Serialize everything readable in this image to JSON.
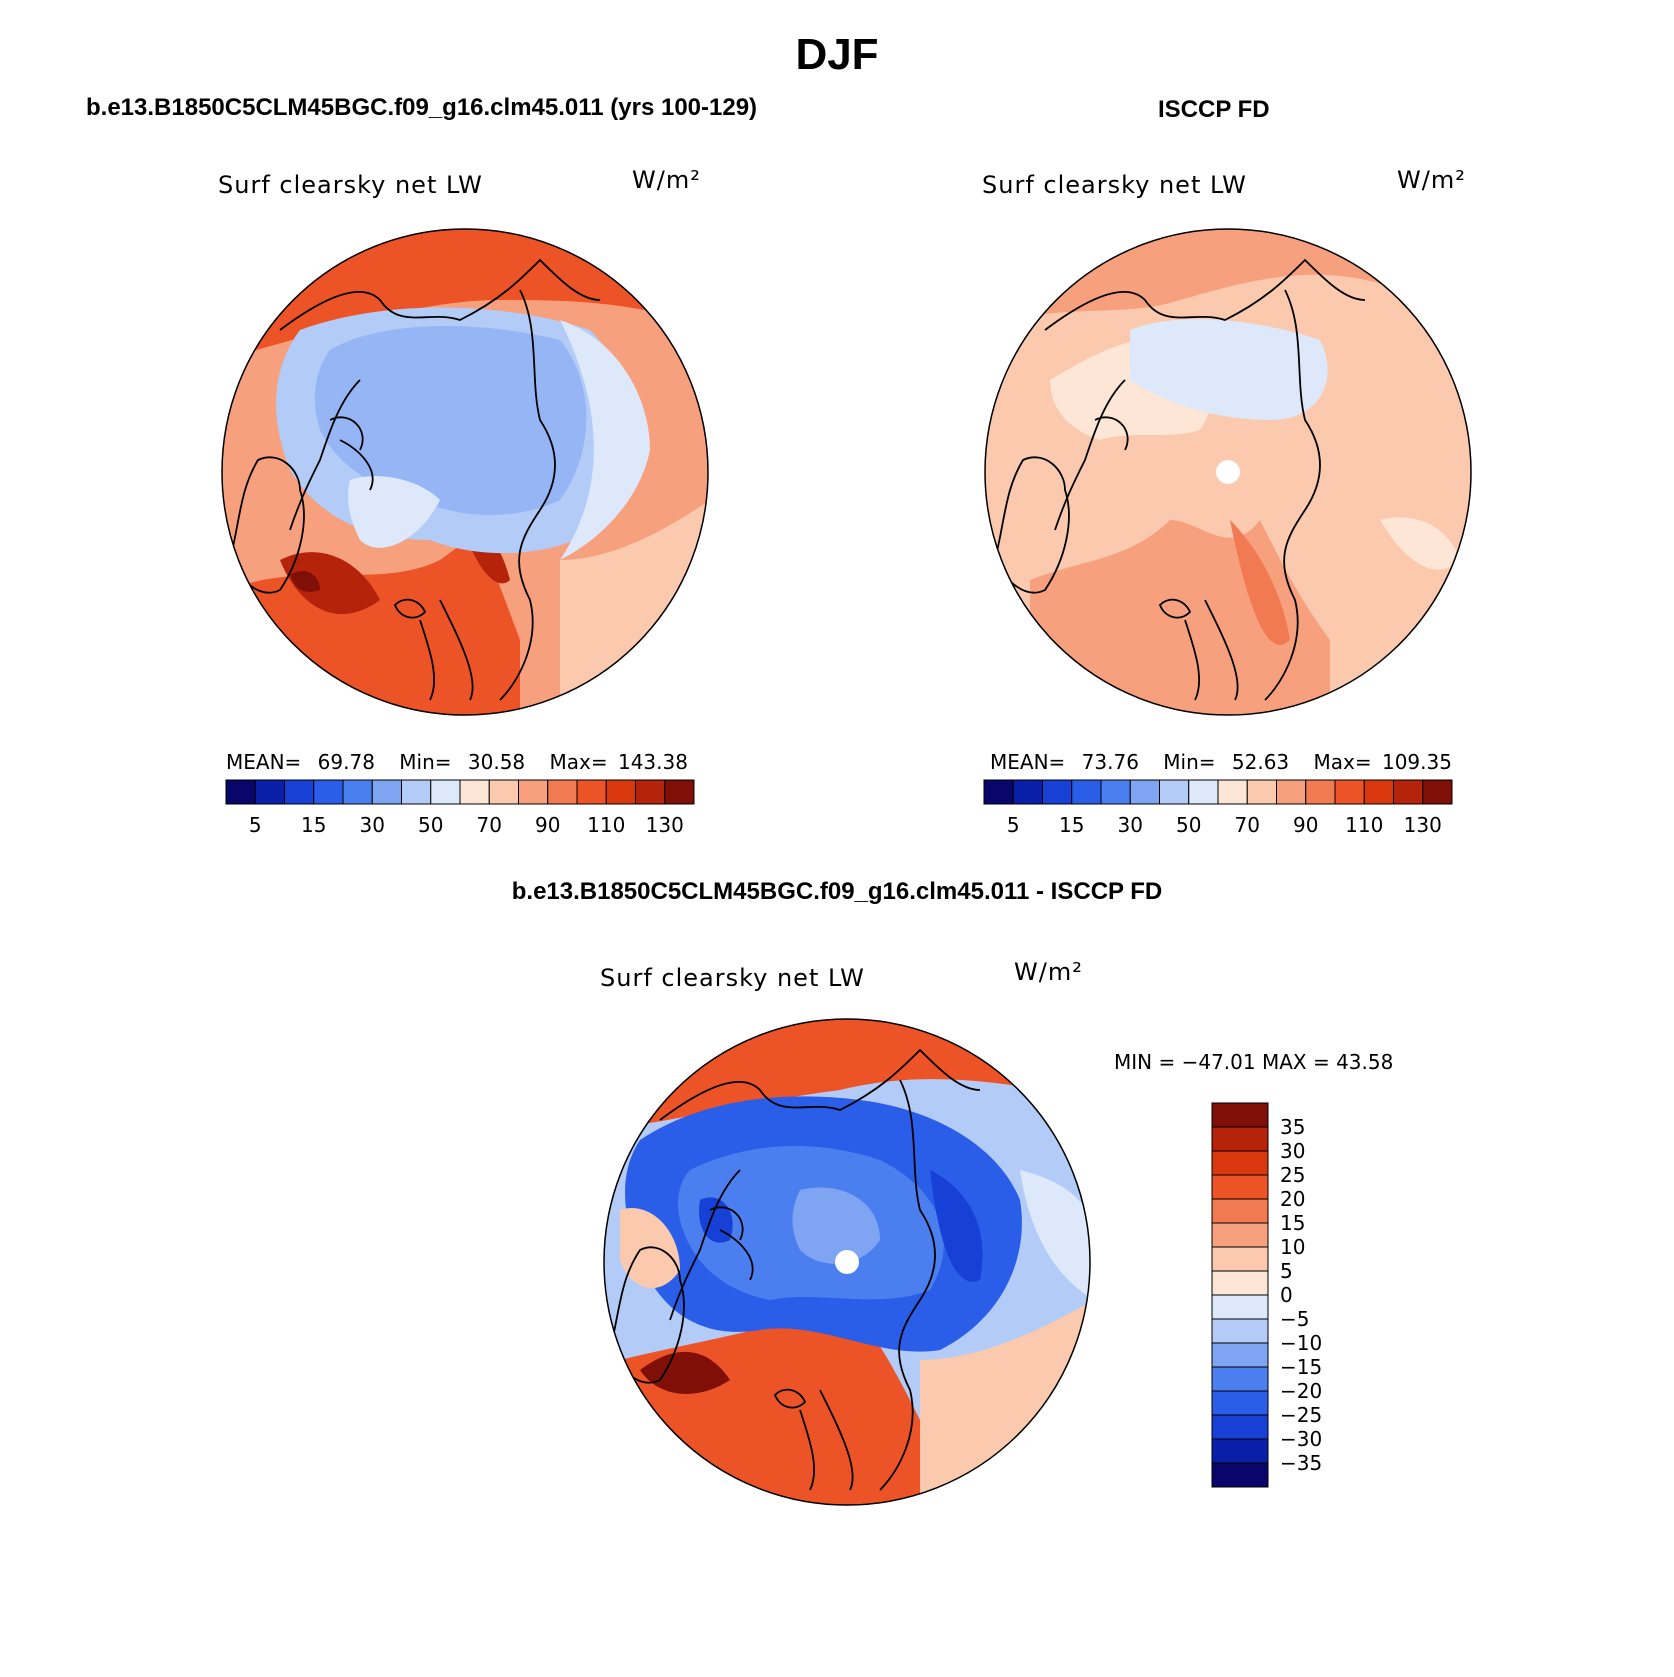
{
  "season_title": "DJF",
  "panels": {
    "model": {
      "title": "b.e13.B1850C5CLM45BGC.f09_g16.clm45.011 (yrs 100-129)",
      "variable": "Surf clearsky net LW",
      "units": "W/m²",
      "mean_label": "MEAN=",
      "mean": "69.78",
      "min_label": "Min=",
      "min": "30.58",
      "max_label": "Max=",
      "max": "143.38"
    },
    "obs": {
      "title": "ISCCP FD",
      "variable": "Surf clearsky net LW",
      "units": "W/m²",
      "mean_label": "MEAN=",
      "mean": "73.76",
      "min_label": "Min=",
      "min": "52.63",
      "max_label": "Max=",
      "max": "109.35"
    },
    "diff": {
      "title": "b.e13.B1850C5CLM45BGC.f09_g16.clm45.011 - ISCCP FD",
      "variable": "Surf clearsky net LW",
      "units": "W/m²",
      "minmax_text": "MIN = −47.01 MAX =  43.58"
    }
  },
  "colors": {
    "abs_scale": [
      "#08066b",
      "#0a1fa8",
      "#1640d6",
      "#2a5ee8",
      "#4b7ff0",
      "#7ea4f2",
      "#b3cbf7",
      "#dde9fb",
      "#fde6d6",
      "#fbc9ae",
      "#f7a07e",
      "#f27a52",
      "#ec5327",
      "#d9380f",
      "#b5230a",
      "#800f08"
    ],
    "diff_scale": [
      "#08066b",
      "#0a1fa8",
      "#1640d6",
      "#2a5ee8",
      "#4b7ff0",
      "#7ea4f2",
      "#b3cbf7",
      "#dde9fb",
      "#fde6d6",
      "#fbc9ae",
      "#f7a07e",
      "#f27a52",
      "#ec5327",
      "#d9380f",
      "#b5230a",
      "#800f08"
    ],
    "coastline": "#000000"
  },
  "chart_data": [
    {
      "type": "heatmap",
      "title": "b.e13.B1850C5CLM45BGC.f09_g16.clm45.011 (yrs 100-129)",
      "projection": "north polar stereographic",
      "variable": "Surf clearsky net LW",
      "units": "W/m²",
      "mean": 69.78,
      "min": 30.58,
      "max": 143.38,
      "colorbar_ticks": [
        "5",
        "15",
        "30",
        "50",
        "70",
        "90",
        "110",
        "130"
      ],
      "colorbar_orientation": "horizontal"
    },
    {
      "type": "heatmap",
      "title": "ISCCP FD",
      "projection": "north polar stereographic",
      "variable": "Surf clearsky net LW",
      "units": "W/m²",
      "mean": 73.76,
      "min": 52.63,
      "max": 109.35,
      "colorbar_ticks": [
        "5",
        "15",
        "30",
        "50",
        "70",
        "90",
        "110",
        "130"
      ],
      "colorbar_orientation": "horizontal"
    },
    {
      "type": "heatmap",
      "title": "b.e13.B1850C5CLM45BGC.f09_g16.clm45.011 - ISCCP FD",
      "projection": "north polar stereographic",
      "variable": "Surf clearsky net LW",
      "units": "W/m²",
      "min": -47.01,
      "max": 43.58,
      "colorbar_ticks": [
        "35",
        "30",
        "25",
        "20",
        "15",
        "10",
        "5",
        "0",
        "−5",
        "−10",
        "−15",
        "−20",
        "−25",
        "−30",
        "−35"
      ],
      "colorbar_orientation": "vertical"
    }
  ]
}
